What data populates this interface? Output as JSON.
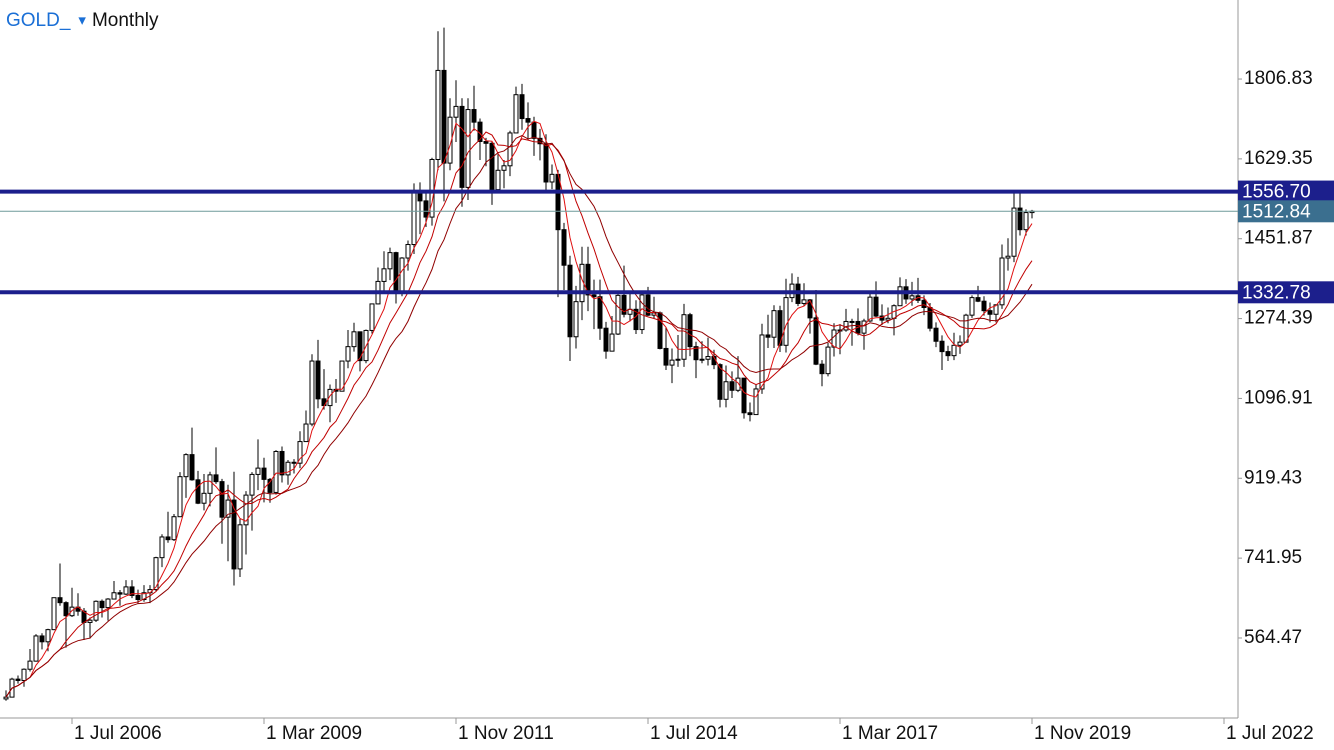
{
  "chart_data": {
    "type": "candlestick",
    "symbol": "GOLD_",
    "dropdown": "▾",
    "timeframe": "Monthly",
    "x": [
      "2005-08",
      "2005-09",
      "2005-10",
      "2005-11",
      "2005-12",
      "2006-01",
      "2006-02",
      "2006-03",
      "2006-04",
      "2006-05",
      "2006-06",
      "2006-07",
      "2006-08",
      "2006-09",
      "2006-10",
      "2006-11",
      "2006-12",
      "2007-01",
      "2007-02",
      "2007-03",
      "2007-04",
      "2007-05",
      "2007-06",
      "2007-07",
      "2007-08",
      "2007-09",
      "2007-10",
      "2007-11",
      "2007-12",
      "2008-01",
      "2008-02",
      "2008-03",
      "2008-04",
      "2008-05",
      "2008-06",
      "2008-07",
      "2008-08",
      "2008-09",
      "2008-10",
      "2008-11",
      "2008-12",
      "2009-01",
      "2009-02",
      "2009-03",
      "2009-04",
      "2009-05",
      "2009-06",
      "2009-07",
      "2009-08",
      "2009-09",
      "2009-10",
      "2009-11",
      "2009-12",
      "2010-01",
      "2010-02",
      "2010-03",
      "2010-04",
      "2010-05",
      "2010-06",
      "2010-07",
      "2010-08",
      "2010-09",
      "2010-10",
      "2010-11",
      "2010-12",
      "2011-01",
      "2011-02",
      "2011-03",
      "2011-04",
      "2011-05",
      "2011-06",
      "2011-07",
      "2011-08",
      "2011-09",
      "2011-10",
      "2011-11",
      "2011-12",
      "2012-01",
      "2012-02",
      "2012-03",
      "2012-04",
      "2012-05",
      "2012-06",
      "2012-07",
      "2012-08",
      "2012-09",
      "2012-10",
      "2012-11",
      "2012-12",
      "2013-01",
      "2013-02",
      "2013-03",
      "2013-04",
      "2013-05",
      "2013-06",
      "2013-07",
      "2013-08",
      "2013-09",
      "2013-10",
      "2013-11",
      "2013-12",
      "2014-01",
      "2014-02",
      "2014-03",
      "2014-04",
      "2014-05",
      "2014-06",
      "2014-07",
      "2014-08",
      "2014-09",
      "2014-10",
      "2014-11",
      "2014-12",
      "2015-01",
      "2015-02",
      "2015-03",
      "2015-04",
      "2015-05",
      "2015-06",
      "2015-07",
      "2015-08",
      "2015-09",
      "2015-10",
      "2015-11",
      "2015-12",
      "2016-01",
      "2016-02",
      "2016-03",
      "2016-04",
      "2016-05",
      "2016-06",
      "2016-07",
      "2016-08",
      "2016-09",
      "2016-10",
      "2016-11",
      "2016-12",
      "2017-01",
      "2017-02",
      "2017-03",
      "2017-04",
      "2017-05",
      "2017-06",
      "2017-07",
      "2017-08",
      "2017-09",
      "2017-10",
      "2017-11",
      "2017-12",
      "2018-01",
      "2018-02",
      "2018-03",
      "2018-04",
      "2018-05",
      "2018-06",
      "2018-07",
      "2018-08",
      "2018-09",
      "2018-10",
      "2018-11",
      "2018-12",
      "2019-01",
      "2019-02",
      "2019-03",
      "2019-04",
      "2019-05",
      "2019-06",
      "2019-07",
      "2019-08",
      "2019-09",
      "2019-10",
      "2019-11"
    ],
    "candles": [
      [
        429,
        448,
        425,
        433
      ],
      [
        433,
        476,
        433,
        473
      ],
      [
        473,
        481,
        463,
        470
      ],
      [
        470,
        497,
        456,
        495
      ],
      [
        495,
        540,
        490,
        513
      ],
      [
        513,
        573,
        512,
        569
      ],
      [
        569,
        575,
        539,
        556
      ],
      [
        556,
        585,
        535,
        583
      ],
      [
        583,
        654,
        582,
        654
      ],
      [
        654,
        730,
        636,
        643
      ],
      [
        643,
        646,
        543,
        614
      ],
      [
        614,
        676,
        611,
        633
      ],
      [
        633,
        664,
        614,
        624
      ],
      [
        624,
        631,
        560,
        599
      ],
      [
        599,
        610,
        563,
        604
      ],
      [
        604,
        648,
        600,
        646
      ],
      [
        646,
        650,
        610,
        632
      ],
      [
        632,
        653,
        603,
        651
      ],
      [
        651,
        691,
        650,
        665
      ],
      [
        665,
        671,
        636,
        662
      ],
      [
        662,
        693,
        660,
        678
      ],
      [
        678,
        693,
        653,
        659
      ],
      [
        659,
        672,
        640,
        650
      ],
      [
        650,
        682,
        645,
        665
      ],
      [
        665,
        682,
        642,
        672
      ],
      [
        672,
        745,
        669,
        743
      ],
      [
        743,
        795,
        722,
        789
      ],
      [
        789,
        845,
        776,
        783
      ],
      [
        783,
        840,
        780,
        834
      ],
      [
        834,
        933,
        834,
        923
      ],
      [
        923,
        975,
        876,
        972
      ],
      [
        972,
        1032,
        914,
        916
      ],
      [
        916,
        936,
        862,
        864
      ],
      [
        864,
        929,
        848,
        886
      ],
      [
        886,
        934,
        857,
        927
      ],
      [
        927,
        988,
        907,
        912
      ],
      [
        912,
        918,
        774,
        833
      ],
      [
        833,
        905,
        735,
        871
      ],
      [
        871,
        934,
        681,
        718
      ],
      [
        718,
        831,
        700,
        816
      ],
      [
        816,
        891,
        750,
        882
      ],
      [
        882,
        933,
        803,
        928
      ],
      [
        928,
        1006,
        893,
        942
      ],
      [
        942,
        965,
        866,
        917
      ],
      [
        917,
        920,
        865,
        888
      ],
      [
        888,
        982,
        883,
        979
      ],
      [
        979,
        990,
        910,
        927
      ],
      [
        927,
        960,
        905,
        955
      ],
      [
        955,
        962,
        930,
        953
      ],
      [
        953,
        1024,
        942,
        1001
      ],
      [
        1001,
        1070,
        1001,
        1040
      ],
      [
        1040,
        1195,
        1035,
        1180
      ],
      [
        1180,
        1227,
        1075,
        1096
      ],
      [
        1096,
        1162,
        1072,
        1081
      ],
      [
        1081,
        1128,
        1044,
        1117
      ],
      [
        1117,
        1140,
        1087,
        1113
      ],
      [
        1113,
        1180,
        1113,
        1180
      ],
      [
        1180,
        1249,
        1164,
        1212
      ],
      [
        1212,
        1265,
        1201,
        1245
      ],
      [
        1245,
        1245,
        1157,
        1181
      ],
      [
        1181,
        1250,
        1175,
        1248
      ],
      [
        1248,
        1308,
        1241,
        1307
      ],
      [
        1307,
        1388,
        1306,
        1357
      ],
      [
        1357,
        1424,
        1330,
        1385
      ],
      [
        1385,
        1432,
        1360,
        1421
      ],
      [
        1421,
        1423,
        1308,
        1332
      ],
      [
        1332,
        1411,
        1324,
        1409
      ],
      [
        1409,
        1448,
        1381,
        1439
      ],
      [
        1439,
        1575,
        1418,
        1556
      ],
      [
        1556,
        1577,
        1462,
        1536
      ],
      [
        1536,
        1559,
        1478,
        1500
      ],
      [
        1500,
        1632,
        1481,
        1628
      ],
      [
        1628,
        1913,
        1604,
        1826
      ],
      [
        1826,
        1921,
        1535,
        1620
      ],
      [
        1620,
        1764,
        1604,
        1722
      ],
      [
        1722,
        1804,
        1667,
        1746
      ],
      [
        1746,
        1764,
        1523,
        1566
      ],
      [
        1566,
        1764,
        1538,
        1739
      ],
      [
        1739,
        1792,
        1692,
        1711
      ],
      [
        1711,
        1719,
        1627,
        1668
      ],
      [
        1668,
        1676,
        1613,
        1664
      ],
      [
        1664,
        1669,
        1527,
        1561
      ],
      [
        1561,
        1640,
        1556,
        1604
      ],
      [
        1604,
        1627,
        1564,
        1614
      ],
      [
        1614,
        1692,
        1591,
        1687
      ],
      [
        1687,
        1790,
        1687,
        1772
      ],
      [
        1772,
        1796,
        1694,
        1719
      ],
      [
        1719,
        1755,
        1672,
        1711
      ],
      [
        1711,
        1723,
        1636,
        1675
      ],
      [
        1675,
        1696,
        1626,
        1663
      ],
      [
        1663,
        1684,
        1555,
        1578
      ],
      [
        1578,
        1617,
        1562,
        1595
      ],
      [
        1595,
        1605,
        1322,
        1472
      ],
      [
        1472,
        1487,
        1338,
        1393
      ],
      [
        1393,
        1414,
        1180,
        1234
      ],
      [
        1234,
        1347,
        1208,
        1312
      ],
      [
        1312,
        1434,
        1271,
        1395
      ],
      [
        1395,
        1434,
        1291,
        1327
      ],
      [
        1327,
        1361,
        1251,
        1323
      ],
      [
        1323,
        1361,
        1227,
        1253
      ],
      [
        1253,
        1267,
        1185,
        1202
      ],
      [
        1202,
        1280,
        1202,
        1240
      ],
      [
        1240,
        1332,
        1238,
        1326
      ],
      [
        1326,
        1392,
        1277,
        1284
      ],
      [
        1284,
        1331,
        1268,
        1295
      ],
      [
        1295,
        1315,
        1240,
        1250
      ],
      [
        1250,
        1332,
        1240,
        1327
      ],
      [
        1327,
        1345,
        1280,
        1282
      ],
      [
        1282,
        1323,
        1274,
        1287
      ],
      [
        1287,
        1290,
        1206,
        1208
      ],
      [
        1208,
        1255,
        1160,
        1171
      ],
      [
        1171,
        1208,
        1131,
        1182
      ],
      [
        1182,
        1238,
        1167,
        1184
      ],
      [
        1184,
        1307,
        1167,
        1283
      ],
      [
        1283,
        1287,
        1191,
        1212
      ],
      [
        1212,
        1223,
        1142,
        1183
      ],
      [
        1183,
        1224,
        1175,
        1184
      ],
      [
        1184,
        1232,
        1170,
        1190
      ],
      [
        1190,
        1205,
        1162,
        1172
      ],
      [
        1172,
        1175,
        1077,
        1095
      ],
      [
        1095,
        1170,
        1077,
        1134
      ],
      [
        1134,
        1157,
        1098,
        1115
      ],
      [
        1115,
        1191,
        1111,
        1142
      ],
      [
        1142,
        1142,
        1052,
        1065
      ],
      [
        1065,
        1088,
        1046,
        1061
      ],
      [
        1061,
        1128,
        1061,
        1118
      ],
      [
        1118,
        1263,
        1107,
        1238
      ],
      [
        1238,
        1283,
        1209,
        1233
      ],
      [
        1233,
        1304,
        1209,
        1292
      ],
      [
        1292,
        1303,
        1200,
        1215
      ],
      [
        1215,
        1363,
        1199,
        1321
      ],
      [
        1321,
        1375,
        1311,
        1351
      ],
      [
        1351,
        1367,
        1302,
        1308
      ],
      [
        1308,
        1353,
        1302,
        1316
      ],
      [
        1316,
        1318,
        1241,
        1276
      ],
      [
        1276,
        1338,
        1171,
        1173
      ],
      [
        1173,
        1182,
        1124,
        1152
      ],
      [
        1152,
        1220,
        1146,
        1211
      ],
      [
        1211,
        1264,
        1190,
        1249
      ],
      [
        1249,
        1262,
        1195,
        1249
      ],
      [
        1249,
        1296,
        1245,
        1268
      ],
      [
        1268,
        1274,
        1214,
        1268
      ],
      [
        1268,
        1297,
        1237,
        1242
      ],
      [
        1242,
        1274,
        1205,
        1269
      ],
      [
        1269,
        1331,
        1267,
        1322
      ],
      [
        1322,
        1357,
        1278,
        1280
      ],
      [
        1280,
        1306,
        1260,
        1271
      ],
      [
        1271,
        1299,
        1264,
        1275
      ],
      [
        1275,
        1306,
        1237,
        1303
      ],
      [
        1303,
        1366,
        1302,
        1345
      ],
      [
        1345,
        1362,
        1307,
        1318
      ],
      [
        1318,
        1356,
        1303,
        1325
      ],
      [
        1325,
        1365,
        1309,
        1315
      ],
      [
        1315,
        1326,
        1282,
        1299
      ],
      [
        1299,
        1309,
        1246,
        1253
      ],
      [
        1253,
        1266,
        1211,
        1224
      ],
      [
        1224,
        1237,
        1160,
        1201
      ],
      [
        1201,
        1214,
        1180,
        1192
      ],
      [
        1192,
        1243,
        1182,
        1215
      ],
      [
        1215,
        1237,
        1196,
        1222
      ],
      [
        1222,
        1285,
        1221,
        1282
      ],
      [
        1282,
        1326,
        1276,
        1321
      ],
      [
        1321,
        1347,
        1311,
        1313
      ],
      [
        1313,
        1324,
        1281,
        1292
      ],
      [
        1292,
        1310,
        1266,
        1284
      ],
      [
        1284,
        1306,
        1266,
        1305
      ],
      [
        1305,
        1439,
        1296,
        1409
      ],
      [
        1409,
        1453,
        1381,
        1413
      ],
      [
        1413,
        1555,
        1400,
        1520
      ],
      [
        1520,
        1557,
        1459,
        1472
      ],
      [
        1472,
        1517,
        1459,
        1510
      ],
      [
        1510,
        1516,
        1497,
        1512.84
      ]
    ],
    "indicators": [
      {
        "period": 5,
        "color": "#e01010"
      },
      {
        "period": 10,
        "color": "#c00000"
      },
      {
        "period": 15,
        "color": "#900000"
      }
    ],
    "ylim": [
      386.6,
      1982.5
    ],
    "yticks": [
      564.47,
      741.95,
      919.43,
      1096.91,
      1274.39,
      1451.87,
      1629.35,
      1806.83
    ],
    "xticks": [
      {
        "value": "2006-07",
        "label": "1 Jul 2006"
      },
      {
        "value": "2009-03",
        "label": "1 Mar 2009"
      },
      {
        "value": "2011-11",
        "label": "1 Nov 2011"
      },
      {
        "value": "2014-07",
        "label": "1 Jul 2014"
      },
      {
        "value": "2017-03",
        "label": "1 Mar 2017"
      },
      {
        "value": "2019-11",
        "label": "1 Nov 2019"
      },
      {
        "value": "2022-07",
        "label": "1 Jul 2022"
      }
    ],
    "hlines": [
      {
        "price": {
          "value": 1556.7,
          "label": "1556.70"
        }
      },
      {
        "price": 1332.78
      }
    ],
    "hline_color": "#1c1f8c",
    "current_price": 1512.84,
    "current_color": "#3b6f8f",
    "grid": false
  }
}
